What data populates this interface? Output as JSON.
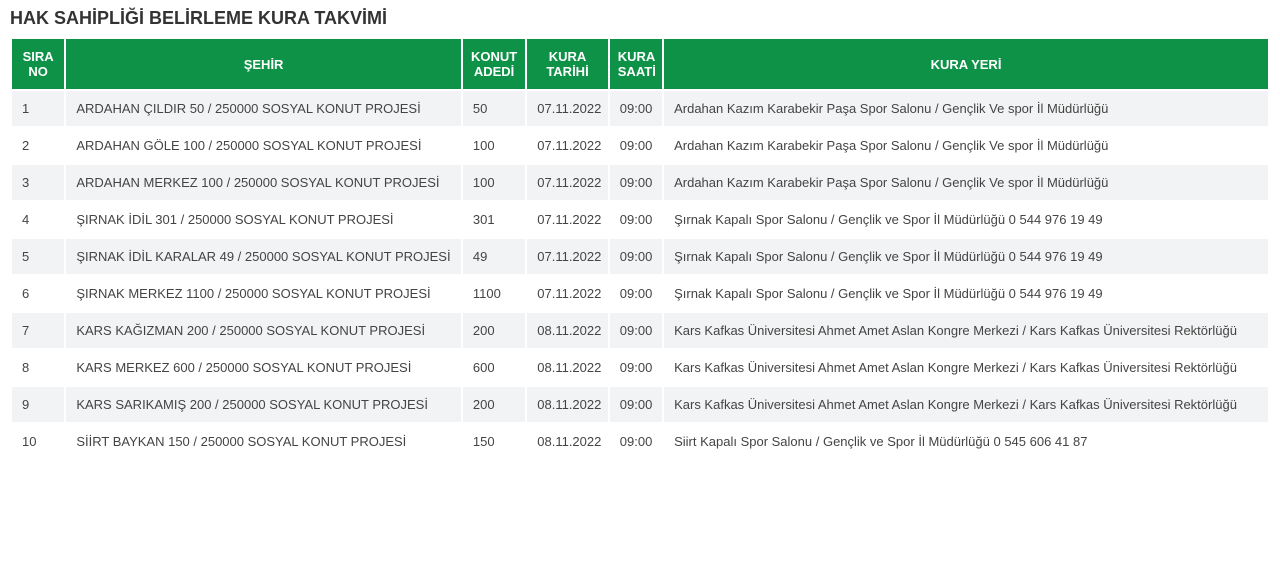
{
  "title": "HAK SAHİPLİĞİ BELİRLEME KURA TAKVİMİ",
  "columns": {
    "sira": "SIRA NO",
    "sehir": "ŞEHİR",
    "adedi": "KONUT ADEDİ",
    "tarih": "KURA TARİHİ",
    "saati": "KURA SAATİ",
    "yeri": "KURA YERİ"
  },
  "rows": [
    {
      "sira": "1",
      "sehir": "ARDAHAN ÇILDIR 50 / 250000 SOSYAL KONUT PROJESİ",
      "adedi": "50",
      "tarih": "07.11.2022",
      "saati": "09:00",
      "yeri": "Ardahan Kazım Karabekir Paşa Spor Salonu / Gençlik Ve spor İl Müdürlüğü"
    },
    {
      "sira": "2",
      "sehir": "ARDAHAN GÖLE 100 / 250000 SOSYAL KONUT PROJESİ",
      "adedi": "100",
      "tarih": "07.11.2022",
      "saati": "09:00",
      "yeri": "Ardahan Kazım Karabekir Paşa Spor Salonu / Gençlik Ve spor İl Müdürlüğü"
    },
    {
      "sira": "3",
      "sehir": "ARDAHAN MERKEZ 100 / 250000 SOSYAL KONUT PROJESİ",
      "adedi": "100",
      "tarih": "07.11.2022",
      "saati": "09:00",
      "yeri": "Ardahan Kazım Karabekir Paşa Spor Salonu / Gençlik Ve spor İl Müdürlüğü"
    },
    {
      "sira": "4",
      "sehir": "ŞIRNAK İDİL 301 / 250000 SOSYAL KONUT PROJESİ",
      "adedi": "301",
      "tarih": "07.11.2022",
      "saati": "09:00",
      "yeri": "Şırnak Kapalı Spor Salonu / Gençlik ve Spor İl Müdürlüğü  0 544 976 19 49"
    },
    {
      "sira": "5",
      "sehir": "ŞIRNAK İDİL KARALAR 49 / 250000 SOSYAL KONUT PROJESİ",
      "adedi": "49",
      "tarih": "07.11.2022",
      "saati": "09:00",
      "yeri": "Şırnak Kapalı Spor Salonu / Gençlik ve Spor İl Müdürlüğü  0 544 976 19 49"
    },
    {
      "sira": "6",
      "sehir": "ŞIRNAK MERKEZ 1100 / 250000 SOSYAL KONUT PROJESİ",
      "adedi": "1100",
      "tarih": "07.11.2022",
      "saati": "09:00",
      "yeri": "Şırnak Kapalı Spor Salonu / Gençlik ve Spor İl Müdürlüğü  0 544 976 19 49"
    },
    {
      "sira": "7",
      "sehir": "KARS KAĞIZMAN 200 / 250000 SOSYAL KONUT PROJESİ",
      "adedi": "200",
      "tarih": "08.11.2022",
      "saati": "09:00",
      "yeri": "Kars Kafkas Üniversitesi Ahmet Amet Aslan Kongre Merkezi / Kars Kafkas Üniversitesi Rektörlüğü"
    },
    {
      "sira": "8",
      "sehir": "KARS MERKEZ 600 / 250000 SOSYAL KONUT PROJESİ",
      "adedi": "600",
      "tarih": "08.11.2022",
      "saati": "09:00",
      "yeri": "Kars Kafkas Üniversitesi Ahmet Amet Aslan Kongre Merkezi / Kars Kafkas Üniversitesi Rektörlüğü"
    },
    {
      "sira": "9",
      "sehir": "KARS SARIKAMIŞ 200 / 250000 SOSYAL KONUT PROJESİ",
      "adedi": "200",
      "tarih": "08.11.2022",
      "saati": "09:00",
      "yeri": "Kars Kafkas Üniversitesi Ahmet Amet Aslan Kongre Merkezi / Kars Kafkas Üniversitesi Rektörlüğü"
    },
    {
      "sira": "10",
      "sehir": "SİİRT BAYKAN 150 / 250000 SOSYAL KONUT PROJESİ",
      "adedi": "150",
      "tarih": "08.11.2022",
      "saati": "09:00",
      "yeri": "Siirt Kapalı Spor Salonu / Gençlik ve Spor İl Müdürlüğü  0 545 606 41 87"
    }
  ]
}
